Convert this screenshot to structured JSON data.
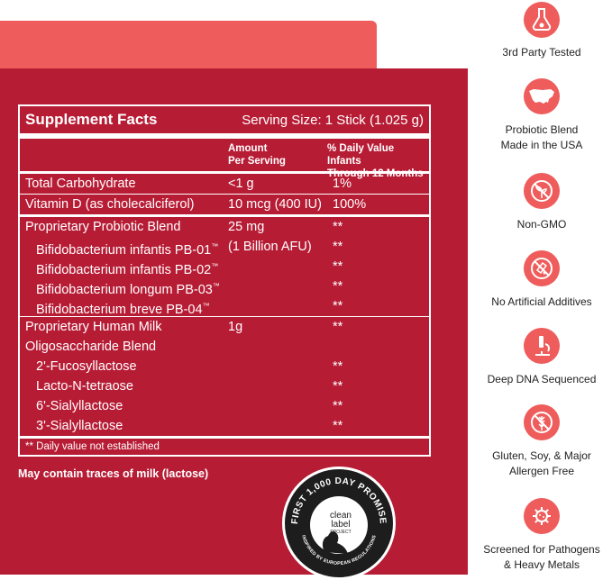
{
  "supplement_facts": {
    "title": "Supplement Facts",
    "serving_size": "Serving Size: 1 Stick (1.025 g)",
    "col_amount_line1": "Amount",
    "col_amount_line2": "Per Serving",
    "col_dv_line1": "% Daily Value Infants",
    "col_dv_line2": "Through 12 Months",
    "rows": [
      {
        "name": "Total Carbohydrate",
        "amount": "<1 g",
        "dv": "1%"
      },
      {
        "name": "Vitamin D (as cholecalciferol)",
        "amount": "10 mcg (400 IU)",
        "dv": "100%"
      },
      {
        "name": "Proprietary Probiotic Blend",
        "amount": "25 mg",
        "dv": "**"
      },
      {
        "name": "Bifidobacterium infantis PB-01",
        "tm": "™",
        "amount": "(1 Billion AFU)",
        "dv": "**"
      },
      {
        "name": "Bifidobacterium infantis PB-02",
        "tm": "™",
        "amount": "",
        "dv": "**"
      },
      {
        "name": "Bifidobacterium longum PB-03",
        "tm": "™",
        "amount": "",
        "dv": "**"
      },
      {
        "name": "Bifidobacterium breve PB-04",
        "tm": "™",
        "amount": "",
        "dv": "**"
      },
      {
        "name": "Proprietary Human Milk",
        "amount": "1g",
        "dv": "**"
      },
      {
        "name": "Oligosaccharide Blend",
        "amount": "",
        "dv": ""
      },
      {
        "name": "2'-Fucosyllactose",
        "amount": "",
        "dv": "**"
      },
      {
        "name": "Lacto-N-tetraose",
        "amount": "",
        "dv": "**"
      },
      {
        "name": "6'-Sialyllactose",
        "amount": "",
        "dv": "**"
      },
      {
        "name": "3'-Sialyllactose",
        "amount": "",
        "dv": "**"
      }
    ],
    "footnote": "** Daily value not established",
    "contains": "May contain traces of milk (lactose)"
  },
  "badge": {
    "top_text": "FIRST 1,000 DAY PROMISE",
    "bottom_text": "INSPIRED BY EUROPEAN REGULATIONS",
    "brand_line1": "clean",
    "brand_line2": "label",
    "brand_line3": "PROJECT"
  },
  "features": [
    {
      "icon": "flask-icon",
      "line1": "3rd Party Tested",
      "line2": ""
    },
    {
      "icon": "usa-map-icon",
      "line1": "Probiotic Blend",
      "line2": "Made in the USA"
    },
    {
      "icon": "no-gmo-plant-icon",
      "line1": "Non-GMO",
      "line2": ""
    },
    {
      "icon": "no-additives-icon",
      "line1": "No Artificial Additives",
      "line2": ""
    },
    {
      "icon": "microscope-icon",
      "line1": "Deep DNA Sequenced",
      "line2": ""
    },
    {
      "icon": "no-wheat-icon",
      "line1": "Gluten, Soy, & Major",
      "line2": "Allergen Free"
    },
    {
      "icon": "virus-icon",
      "line1": "Screened for Pathogens",
      "line2": "& Heavy Metals"
    }
  ],
  "colors": {
    "coral": "#ee5c5b",
    "crimson": "#b71c35",
    "text_dark": "#222222"
  }
}
